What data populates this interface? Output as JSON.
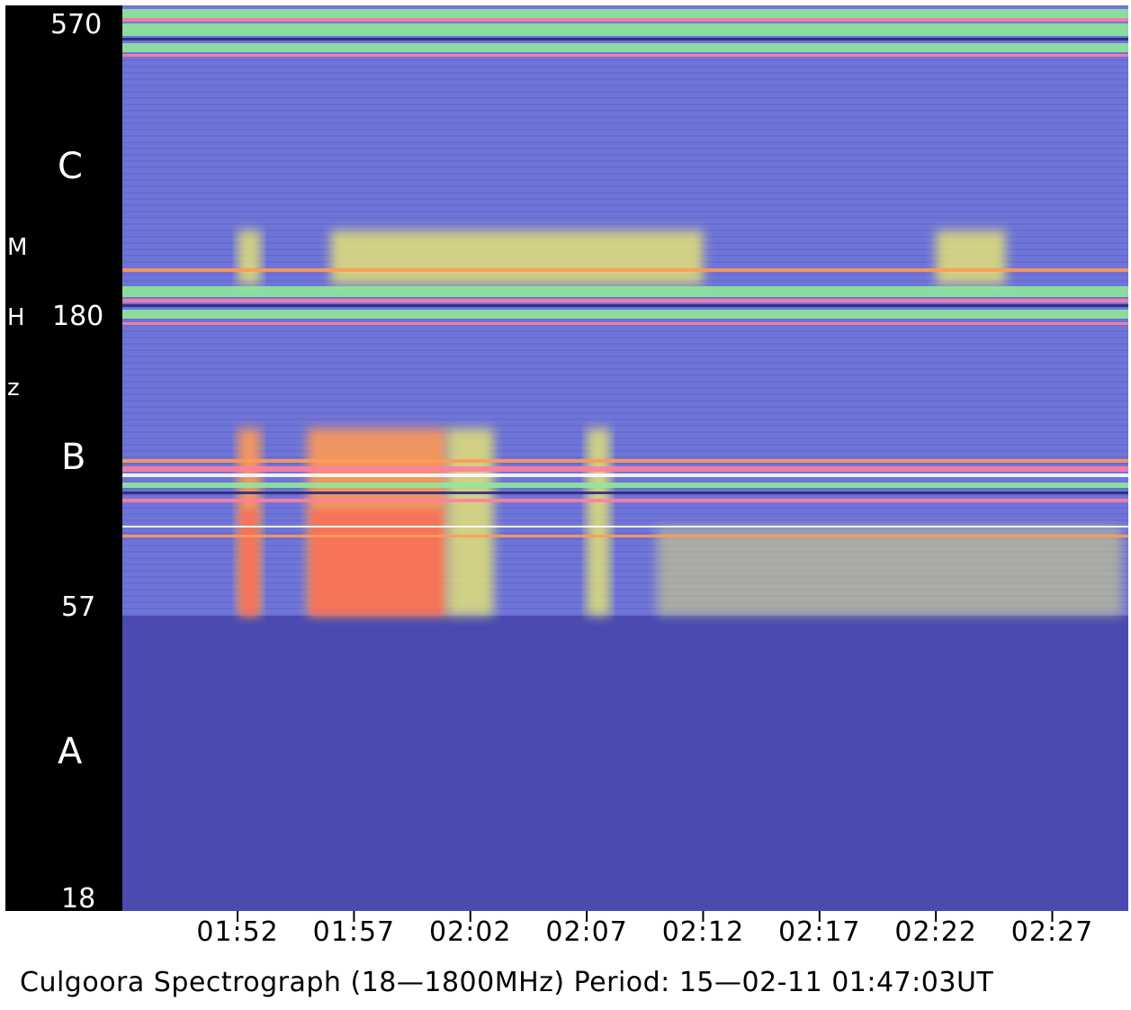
{
  "chart_data": {
    "type": "heatmap",
    "title": "Culgoora Spectrograph (18—1800MHz) Period: 15—02‑11 01:47:03UT",
    "ylabel": "MHz",
    "ylabel_letters": [
      "M",
      "H",
      "z"
    ],
    "xticks": [
      "01:52",
      "01:57",
      "02:02",
      "02:07",
      "02:12",
      "02:17",
      "02:22",
      "02:27"
    ],
    "yticks": [
      "570",
      "180",
      "57",
      "18"
    ],
    "bands": [
      "C",
      "B",
      "A"
    ],
    "colormap": [
      "#4a4ab0",
      "#6f75d8",
      "#f2ef6a",
      "#ff9a55",
      "#ff4f4f"
    ],
    "band_A_color": "#4a4ab0",
    "interference_colors": [
      "#8fe89a",
      "#ff7fa0",
      "#ffffff"
    ],
    "bursts": [
      {
        "band": "C",
        "start": "01:52",
        "end": "01:53",
        "intensity": "moderate"
      },
      {
        "band": "C",
        "start": "01:56",
        "end": "02:12",
        "intensity": "moderate"
      },
      {
        "band": "C",
        "start": "02:22",
        "end": "02:25",
        "intensity": "moderate"
      },
      {
        "band": "B",
        "start": "01:52",
        "end": "01:53",
        "intensity": "high"
      },
      {
        "band": "B",
        "start": "01:55",
        "end": "02:01",
        "intensity": "high"
      },
      {
        "band": "B",
        "start": "02:01",
        "end": "02:03",
        "intensity": "moderate"
      },
      {
        "band": "B",
        "start": "02:07",
        "end": "02:08",
        "intensity": "moderate"
      },
      {
        "band": "B",
        "start": "02:10",
        "end": "02:30",
        "intensity": "low"
      }
    ]
  }
}
